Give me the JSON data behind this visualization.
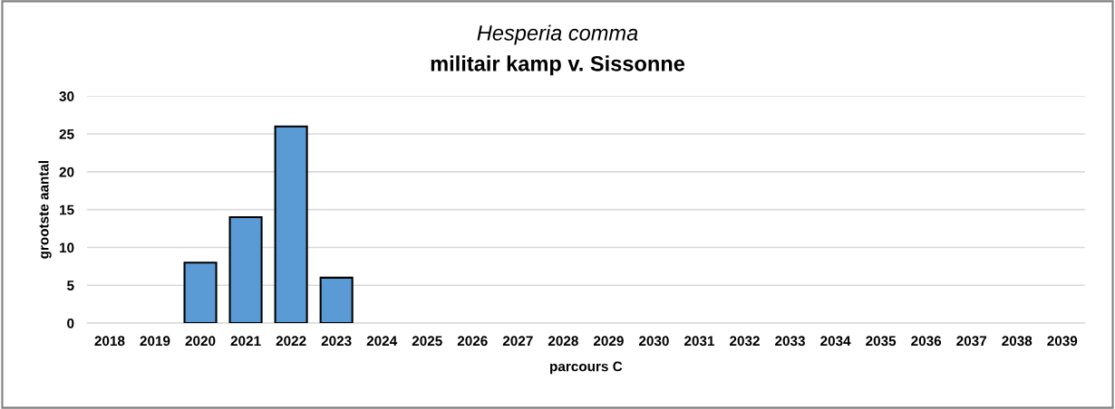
{
  "chart_data": {
    "type": "bar",
    "title": "Hesperia comma",
    "subtitle": "militair kamp v. Sissonne",
    "xlabel": "parcours C",
    "ylabel": "grootste aantal",
    "categories": [
      "2018",
      "2019",
      "2020",
      "2021",
      "2022",
      "2023",
      "2024",
      "2025",
      "2026",
      "2027",
      "2028",
      "2029",
      "2030",
      "2031",
      "2032",
      "2033",
      "2034",
      "2035",
      "2036",
      "2037",
      "2038",
      "2039"
    ],
    "values": [
      null,
      null,
      8,
      14,
      26,
      6,
      null,
      null,
      null,
      null,
      null,
      null,
      null,
      null,
      null,
      null,
      null,
      null,
      null,
      null,
      null,
      null
    ],
    "color": "#5b9bd5",
    "ylim": [
      0,
      30
    ],
    "yticks": [
      0,
      5,
      10,
      15,
      20,
      25,
      30
    ],
    "grid": "y"
  }
}
